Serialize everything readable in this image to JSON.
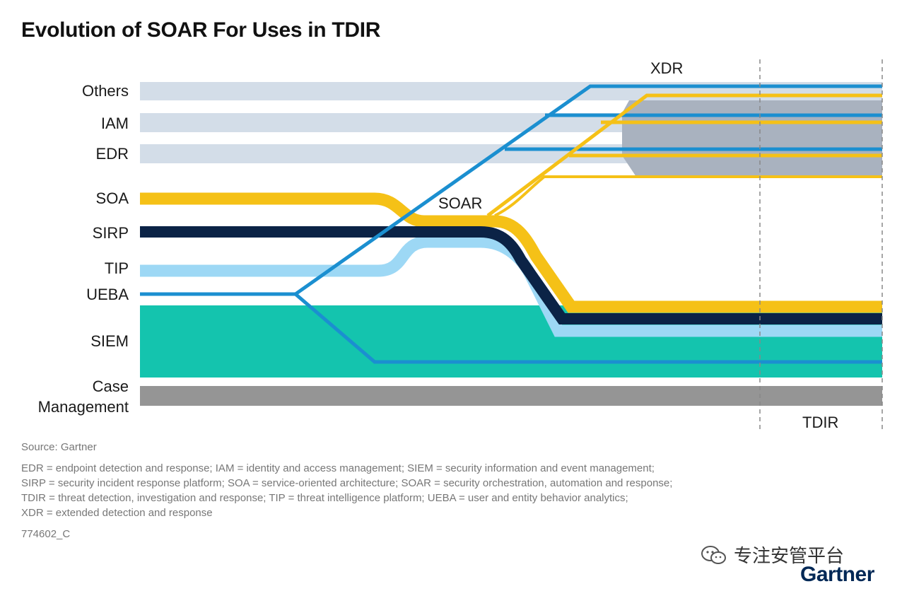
{
  "title": "Evolution of SOAR For Uses in TDIR",
  "rows": {
    "others": "Others",
    "iam": "IAM",
    "edr": "EDR",
    "soa": "SOA",
    "sirp": "SIRP",
    "tip": "TIP",
    "ueba": "UEBA",
    "siem": "SIEM",
    "case_line1": "Case",
    "case_line2": "Management"
  },
  "labels": {
    "xdr": "XDR",
    "soar": "SOAR",
    "tdir": "TDIR"
  },
  "footer": {
    "source": "Source: Gartner",
    "notes": [
      "EDR = endpoint detection and response; IAM = identity and access management; SIEM = security information and event management;",
      "SIRP = security incident response platform; SOA = service-oriented architecture; SOAR = security orchestration, automation and response;",
      "TDIR = threat detection, investigation and response; TIP = threat intelligence platform; UEBA = user and entity behavior analytics;",
      "XDR = extended detection and response"
    ],
    "code": "774602_C"
  },
  "watermark": "专注安管平台",
  "brand": "Gartner",
  "colors": {
    "light_gray_blue": "#d3dde8",
    "gray_band": "#a9b2bf",
    "yellow": "#f5c117",
    "navy": "#0b2346",
    "light_blue": "#9dd8f5",
    "blue": "#1b8fd0",
    "teal": "#14c4ae",
    "case_gray": "#959595"
  }
}
